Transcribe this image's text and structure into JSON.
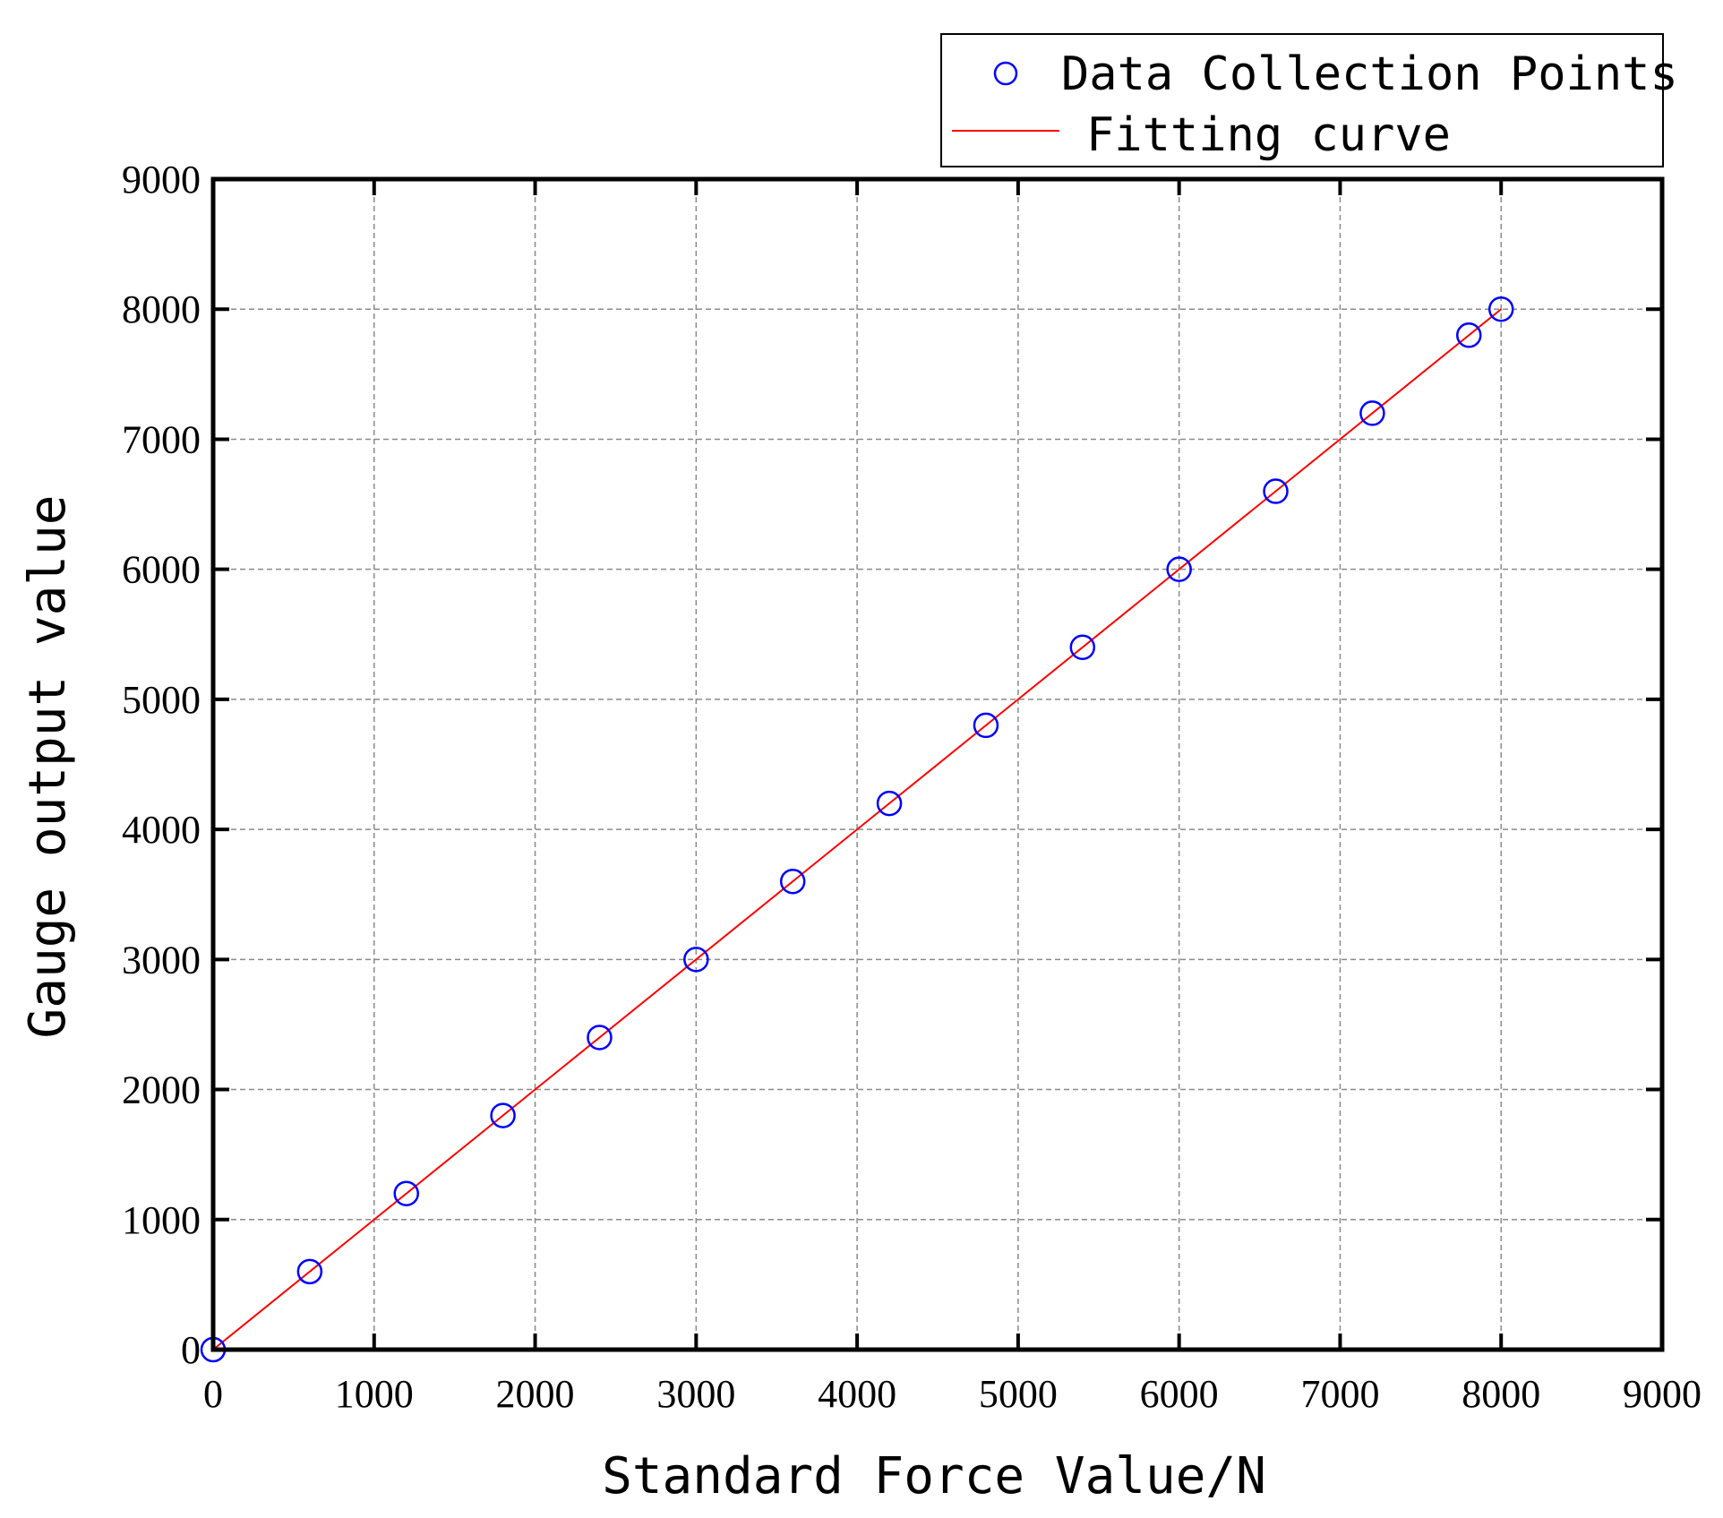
{
  "chart_data": {
    "type": "scatter",
    "title": "",
    "xlabel": "Standard Force Value/N",
    "ylabel": "Gauge output value",
    "xlim": [
      0,
      9000
    ],
    "ylim": [
      0,
      9000
    ],
    "xticks": [
      "0",
      "1000",
      "2000",
      "3000",
      "4000",
      "5000",
      "6000",
      "7000",
      "8000",
      "9000"
    ],
    "yticks": [
      "0",
      "1000",
      "2000",
      "3000",
      "4000",
      "5000",
      "6000",
      "7000",
      "8000",
      "9000"
    ],
    "grid": true,
    "legend_position": "top-right",
    "series": [
      {
        "name": "Data Collection Points",
        "kind": "scatter",
        "marker": "open-circle",
        "color": "#0000ff",
        "x": [
          0,
          600,
          1200,
          1800,
          2400,
          3000,
          3600,
          4200,
          4800,
          5400,
          6000,
          6600,
          7200,
          7800,
          8000
        ],
        "y": [
          0,
          600,
          1200,
          1800,
          2400,
          3000,
          3600,
          4200,
          4800,
          5400,
          6000,
          6600,
          7200,
          7800,
          8000
        ]
      },
      {
        "name": "Fitting curve",
        "kind": "line",
        "color": "#ff0000",
        "x": [
          0,
          8000
        ],
        "y": [
          0,
          8000
        ]
      }
    ]
  }
}
